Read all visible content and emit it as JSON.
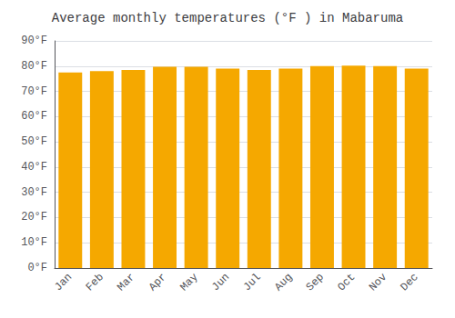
{
  "chart_data": {
    "type": "bar",
    "title": "Average monthly temperatures (°F ) in Mabaruma",
    "categories": [
      "Jan",
      "Feb",
      "Mar",
      "Apr",
      "May",
      "Jun",
      "Jul",
      "Aug",
      "Sep",
      "Oct",
      "Nov",
      "Dec"
    ],
    "values": [
      77.5,
      78.0,
      78.5,
      79.7,
      79.7,
      79.0,
      78.5,
      79.0,
      80.0,
      80.2,
      80.0,
      79.0
    ],
    "color": "#F5A800",
    "ylim": [
      0,
      90
    ],
    "yticks": [
      {
        "value": 0,
        "label": "0°F"
      },
      {
        "value": 10,
        "label": "10°F"
      },
      {
        "value": 20,
        "label": "20°F"
      },
      {
        "value": 30,
        "label": "30°F"
      },
      {
        "value": 40,
        "label": "40°F"
      },
      {
        "value": 50,
        "label": "50°F"
      },
      {
        "value": 60,
        "label": "60°F"
      },
      {
        "value": 70,
        "label": "70°F"
      },
      {
        "value": 80,
        "label": "80°F"
      },
      {
        "value": 90,
        "label": "90°F"
      }
    ],
    "grid": true
  }
}
